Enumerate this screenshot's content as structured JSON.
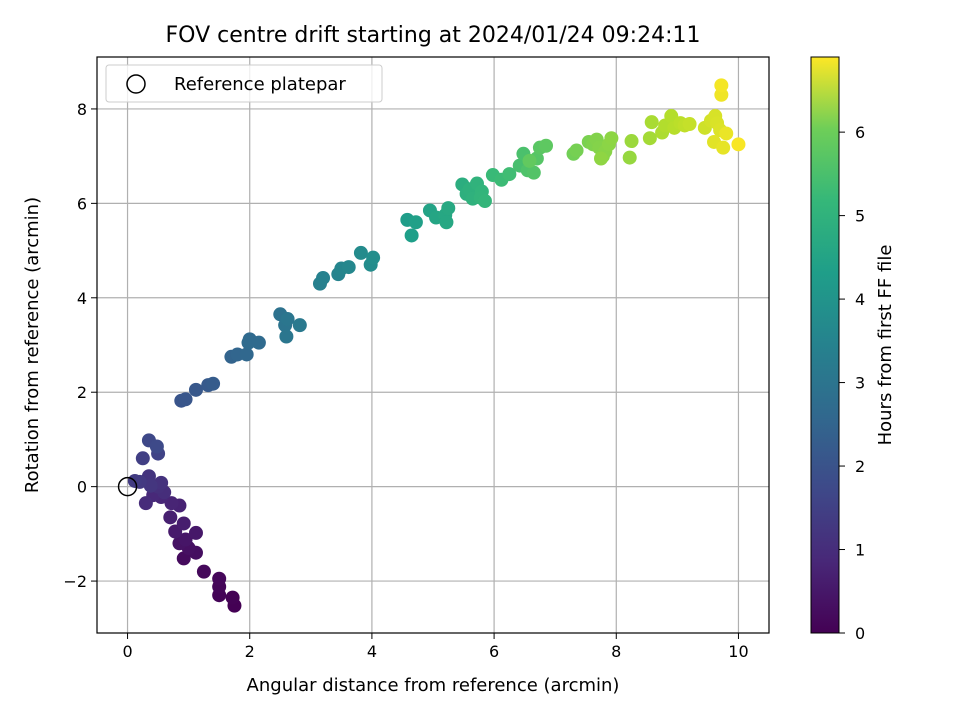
{
  "chart_data": {
    "type": "scatter",
    "title": "FOV centre drift starting at 2024/01/24 09:24:11",
    "xlabel": "Angular distance from reference (arcmin)",
    "ylabel": "Rotation from reference (arcmin)",
    "xlim": [
      -0.5,
      10.5
    ],
    "ylim": [
      -3.1,
      9.1
    ],
    "xticks": [
      0,
      2,
      4,
      6,
      8,
      10
    ],
    "yticks": [
      -2,
      0,
      2,
      4,
      6,
      8
    ],
    "xtick_labels": [
      "0",
      "2",
      "4",
      "6",
      "8",
      "10"
    ],
    "ytick_labels": [
      "−2",
      "0",
      "2",
      "4",
      "6",
      "8"
    ],
    "grid": true,
    "legend": {
      "placement": "top-left",
      "entries": [
        "Reference platepar"
      ]
    },
    "reference_point": {
      "x": 0,
      "y": 0
    },
    "colorbar": {
      "label": "Hours from first FF file",
      "colormap": "viridis",
      "range": [
        0,
        6.9
      ],
      "ticks": [
        0,
        1,
        2,
        3,
        4,
        5,
        6
      ],
      "tick_labels": [
        "0",
        "1",
        "2",
        "3",
        "4",
        "5",
        "6"
      ]
    },
    "points": [
      {
        "x": 1.75,
        "y": -2.52,
        "h": 0.0
      },
      {
        "x": 1.72,
        "y": -2.35,
        "h": 0.03
      },
      {
        "x": 1.5,
        "y": -2.3,
        "h": 0.06
      },
      {
        "x": 1.5,
        "y": -2.12,
        "h": 0.09
      },
      {
        "x": 1.5,
        "y": -1.95,
        "h": 0.12
      },
      {
        "x": 1.25,
        "y": -1.8,
        "h": 0.15
      },
      {
        "x": 0.92,
        "y": -1.52,
        "h": 0.2
      },
      {
        "x": 1.12,
        "y": -1.4,
        "h": 0.25
      },
      {
        "x": 1.0,
        "y": -1.3,
        "h": 0.3
      },
      {
        "x": 0.85,
        "y": -1.2,
        "h": 0.35
      },
      {
        "x": 0.95,
        "y": -1.12,
        "h": 0.4
      },
      {
        "x": 1.12,
        "y": -0.98,
        "h": 0.45
      },
      {
        "x": 0.78,
        "y": -0.95,
        "h": 0.5
      },
      {
        "x": 0.92,
        "y": -0.78,
        "h": 0.55
      },
      {
        "x": 0.7,
        "y": -0.65,
        "h": 0.6
      },
      {
        "x": 0.85,
        "y": -0.4,
        "h": 0.65
      },
      {
        "x": 0.72,
        "y": -0.35,
        "h": 0.7
      },
      {
        "x": 0.55,
        "y": -0.22,
        "h": 0.75
      },
      {
        "x": 0.42,
        "y": -0.18,
        "h": 0.8
      },
      {
        "x": 0.3,
        "y": -0.35,
        "h": 0.85
      },
      {
        "x": 0.6,
        "y": -0.12,
        "h": 0.9
      },
      {
        "x": 0.5,
        "y": 0.0,
        "h": 0.95
      },
      {
        "x": 0.55,
        "y": 0.08,
        "h": 1.0
      },
      {
        "x": 0.35,
        "y": 0.22,
        "h": 1.05
      },
      {
        "x": 0.38,
        "y": 0.02,
        "h": 1.1
      },
      {
        "x": 0.2,
        "y": 0.1,
        "h": 1.15
      },
      {
        "x": 0.12,
        "y": 0.12,
        "h": 1.2
      },
      {
        "x": 0.25,
        "y": 0.6,
        "h": 1.3
      },
      {
        "x": 0.5,
        "y": 0.7,
        "h": 1.4
      },
      {
        "x": 0.35,
        "y": 0.98,
        "h": 1.5
      },
      {
        "x": 0.48,
        "y": 0.85,
        "h": 1.55
      },
      {
        "x": 0.88,
        "y": 1.82,
        "h": 1.8
      },
      {
        "x": 0.95,
        "y": 1.85,
        "h": 1.85
      },
      {
        "x": 1.12,
        "y": 2.05,
        "h": 1.9
      },
      {
        "x": 1.32,
        "y": 2.15,
        "h": 1.95
      },
      {
        "x": 1.4,
        "y": 2.18,
        "h": 2.0
      },
      {
        "x": 1.7,
        "y": 2.75,
        "h": 2.2
      },
      {
        "x": 1.8,
        "y": 2.8,
        "h": 2.25
      },
      {
        "x": 1.95,
        "y": 2.8,
        "h": 2.3
      },
      {
        "x": 2.0,
        "y": 3.12,
        "h": 2.35
      },
      {
        "x": 1.98,
        "y": 3.05,
        "h": 2.38
      },
      {
        "x": 2.15,
        "y": 3.05,
        "h": 2.4
      },
      {
        "x": 2.5,
        "y": 3.65,
        "h": 2.6
      },
      {
        "x": 2.58,
        "y": 3.42,
        "h": 2.65
      },
      {
        "x": 2.62,
        "y": 3.55,
        "h": 2.7
      },
      {
        "x": 2.6,
        "y": 3.18,
        "h": 2.72
      },
      {
        "x": 2.82,
        "y": 3.42,
        "h": 2.8
      },
      {
        "x": 3.15,
        "y": 4.3,
        "h": 3.0
      },
      {
        "x": 3.2,
        "y": 4.42,
        "h": 3.05
      },
      {
        "x": 3.45,
        "y": 4.5,
        "h": 3.1
      },
      {
        "x": 3.5,
        "y": 4.62,
        "h": 3.15
      },
      {
        "x": 3.62,
        "y": 4.65,
        "h": 3.2
      },
      {
        "x": 3.82,
        "y": 4.95,
        "h": 3.3
      },
      {
        "x": 3.98,
        "y": 4.7,
        "h": 3.35
      },
      {
        "x": 4.02,
        "y": 4.85,
        "h": 3.4
      },
      {
        "x": 4.58,
        "y": 5.65,
        "h": 3.8
      },
      {
        "x": 4.65,
        "y": 5.32,
        "h": 3.85
      },
      {
        "x": 4.72,
        "y": 5.6,
        "h": 3.9
      },
      {
        "x": 4.95,
        "y": 5.85,
        "h": 4.0
      },
      {
        "x": 5.05,
        "y": 5.7,
        "h": 4.05
      },
      {
        "x": 5.2,
        "y": 5.75,
        "h": 4.1
      },
      {
        "x": 5.22,
        "y": 5.6,
        "h": 4.12
      },
      {
        "x": 5.25,
        "y": 5.9,
        "h": 4.15
      },
      {
        "x": 5.48,
        "y": 6.4,
        "h": 4.3
      },
      {
        "x": 5.55,
        "y": 6.2,
        "h": 4.35
      },
      {
        "x": 5.6,
        "y": 6.3,
        "h": 4.4
      },
      {
        "x": 5.65,
        "y": 6.1,
        "h": 4.42
      },
      {
        "x": 5.72,
        "y": 6.42,
        "h": 4.45
      },
      {
        "x": 5.8,
        "y": 6.25,
        "h": 4.5
      },
      {
        "x": 5.78,
        "y": 6.12,
        "h": 4.52
      },
      {
        "x": 5.85,
        "y": 6.05,
        "h": 4.55
      },
      {
        "x": 5.98,
        "y": 6.6,
        "h": 4.65
      },
      {
        "x": 6.12,
        "y": 6.5,
        "h": 4.7
      },
      {
        "x": 6.25,
        "y": 6.62,
        "h": 4.75
      },
      {
        "x": 6.42,
        "y": 6.8,
        "h": 4.85
      },
      {
        "x": 6.48,
        "y": 7.05,
        "h": 4.9
      },
      {
        "x": 6.55,
        "y": 6.7,
        "h": 4.95
      },
      {
        "x": 6.65,
        "y": 6.65,
        "h": 5.0
      },
      {
        "x": 6.7,
        "y": 6.95,
        "h": 5.05
      },
      {
        "x": 6.75,
        "y": 7.18,
        "h": 5.1
      },
      {
        "x": 6.85,
        "y": 7.22,
        "h": 5.15
      },
      {
        "x": 6.58,
        "y": 6.9,
        "h": 5.2
      },
      {
        "x": 7.3,
        "y": 7.05,
        "h": 5.4
      },
      {
        "x": 7.35,
        "y": 7.12,
        "h": 5.45
      },
      {
        "x": 7.55,
        "y": 7.3,
        "h": 5.5
      },
      {
        "x": 7.62,
        "y": 7.25,
        "h": 5.55
      },
      {
        "x": 7.68,
        "y": 7.35,
        "h": 5.58
      },
      {
        "x": 7.72,
        "y": 7.18,
        "h": 5.6
      },
      {
        "x": 7.78,
        "y": 7.0,
        "h": 5.62
      },
      {
        "x": 7.82,
        "y": 7.1,
        "h": 5.65
      },
      {
        "x": 7.88,
        "y": 7.25,
        "h": 5.68
      },
      {
        "x": 7.92,
        "y": 7.38,
        "h": 5.7
      },
      {
        "x": 7.75,
        "y": 6.95,
        "h": 5.72
      },
      {
        "x": 8.22,
        "y": 6.97,
        "h": 5.8
      },
      {
        "x": 8.25,
        "y": 7.32,
        "h": 5.85
      },
      {
        "x": 8.55,
        "y": 7.38,
        "h": 5.95
      },
      {
        "x": 8.58,
        "y": 7.72,
        "h": 6.0
      },
      {
        "x": 8.75,
        "y": 7.5,
        "h": 6.05
      },
      {
        "x": 8.8,
        "y": 7.65,
        "h": 6.1
      },
      {
        "x": 8.9,
        "y": 7.85,
        "h": 6.12
      },
      {
        "x": 8.95,
        "y": 7.6,
        "h": 6.15
      },
      {
        "x": 9.05,
        "y": 7.7,
        "h": 6.2
      },
      {
        "x": 9.12,
        "y": 7.65,
        "h": 6.25
      },
      {
        "x": 9.2,
        "y": 7.68,
        "h": 6.3
      },
      {
        "x": 9.45,
        "y": 7.6,
        "h": 6.4
      },
      {
        "x": 9.55,
        "y": 7.75,
        "h": 6.45
      },
      {
        "x": 9.62,
        "y": 7.85,
        "h": 6.5
      },
      {
        "x": 9.65,
        "y": 7.7,
        "h": 6.52
      },
      {
        "x": 9.7,
        "y": 7.55,
        "h": 6.55
      },
      {
        "x": 9.6,
        "y": 7.3,
        "h": 6.6
      },
      {
        "x": 9.75,
        "y": 7.18,
        "h": 6.65
      },
      {
        "x": 9.8,
        "y": 7.48,
        "h": 6.7
      },
      {
        "x": 9.72,
        "y": 8.3,
        "h": 6.75
      },
      {
        "x": 9.72,
        "y": 8.5,
        "h": 6.8
      },
      {
        "x": 10.0,
        "y": 7.25,
        "h": 6.85
      }
    ]
  }
}
